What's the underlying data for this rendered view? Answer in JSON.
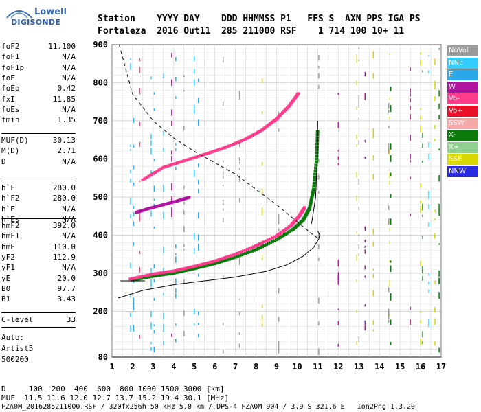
{
  "logo": {
    "line1": "Lowell",
    "line2": "DIGISONDE"
  },
  "header": {
    "row1": "Station    YYYY DAY    DDD HHMMSS P1   FFS S  AXN PPS IGA PS",
    "row2": "Fortaleza  2016 Out11  285 211000 RSF    1 714 100 10+ 11"
  },
  "params_group1": [
    {
      "label": "foF2",
      "value": "11.100"
    },
    {
      "label": "foF1",
      "value": "N/A"
    },
    {
      "label": "foF1p",
      "value": "N/A"
    },
    {
      "label": "foE",
      "value": "N/A"
    },
    {
      "label": "foEp",
      "value": "0.42"
    },
    {
      "label": "fxI",
      "value": "11.85"
    },
    {
      "label": "foEs",
      "value": "N/A"
    },
    {
      "label": "fmin",
      "value": "1.35"
    }
  ],
  "params_group2": [
    {
      "label": "MUF(D)",
      "value": "30.13"
    },
    {
      "label": "M(D)",
      "value": "2.71"
    },
    {
      "label": "D",
      "value": "N/A"
    }
  ],
  "params_group3": [
    {
      "label": "h`F",
      "value": "280.0"
    },
    {
      "label": "h`F2",
      "value": "280.0"
    },
    {
      "label": "h`E",
      "value": "N/A"
    },
    {
      "label": "h`Es",
      "value": "N/A"
    }
  ],
  "params_group4": [
    {
      "label": "hmF2",
      "value": "392.0"
    },
    {
      "label": "hmF1",
      "value": "N/A"
    },
    {
      "label": "hmE",
      "value": "110.0"
    },
    {
      "label": "yF2",
      "value": "112.9"
    },
    {
      "label": "yF1",
      "value": "N/A"
    },
    {
      "label": "yE",
      "value": "20.0"
    },
    {
      "label": "B0",
      "value": "97.7"
    },
    {
      "label": "B1",
      "value": "3.43"
    }
  ],
  "params_group5": [
    {
      "label": "C-level",
      "value": "33"
    }
  ],
  "auto": {
    "line1": "Auto:",
    "line2": "Artist5",
    "line3": "500200"
  },
  "legend": [
    {
      "label": "NoVal",
      "color": "#9a9a9a"
    },
    {
      "label": "NNE",
      "color": "#33ccff"
    },
    {
      "label": "E",
      "color": "#2aa8e8"
    },
    {
      "label": "W",
      "color": "#b0149e"
    },
    {
      "label": "Vo-",
      "color": "#ff3c8c"
    },
    {
      "label": "Vo+",
      "color": "#e8102a"
    },
    {
      "label": "SSW",
      "color": "#f5a8a8"
    },
    {
      "label": "X-",
      "color": "#0a7a0a"
    },
    {
      "label": "X+",
      "color": "#8fd08f"
    },
    {
      "label": "SSE",
      "color": "#d8d800"
    },
    {
      "label": "NNW",
      "color": "#2a2ae0"
    }
  ],
  "footer": {
    "line1": "D     100  200  400  600  800 1000 1500 3000 [km]",
    "line2": "MUF  11.5 11.6 12.0 12.7 13.7 15.2 19.4 30.1 [MHz]",
    "line3": "FZA0M_2016285211000.RSF / 320fx256h 50 kHz 5.0 km / DPS-4 FZA0M 904 / 3.9 S 321.6 E   Ion2Png 1.3.20"
  },
  "chart_data": {
    "type": "scatter",
    "title": "",
    "xlabel": "",
    "ylabel": "",
    "xlim": [
      1,
      17
    ],
    "ylim": [
      80,
      900
    ],
    "x_ticks": [
      1,
      2,
      3,
      4,
      5,
      6,
      7,
      8,
      9,
      10,
      11,
      12,
      13,
      14,
      15,
      16,
      17
    ],
    "y_ticks": [
      80,
      200,
      300,
      400,
      500,
      600,
      700,
      800,
      900
    ],
    "grid": true,
    "series": [
      {
        "name": "X-",
        "color": "#0a7a0a",
        "x": [
          2.0,
          3.0,
          4.0,
          5.0,
          6.0,
          7.0,
          8.0,
          9.0,
          9.8,
          10.3,
          10.6,
          10.8,
          10.95,
          11.0
        ],
        "y": [
          282,
          292,
          300,
          312,
          325,
          342,
          362,
          388,
          415,
          440,
          470,
          520,
          600,
          680
        ]
      },
      {
        "name": "Vo-",
        "color": "#ff3c8c",
        "x": [
          1.9,
          3.0,
          4.0,
          5.0,
          6.0,
          7.0,
          8.0,
          9.0,
          9.7,
          10.1,
          10.4
        ],
        "y": [
          285,
          298,
          306,
          318,
          332,
          350,
          372,
          398,
          425,
          450,
          475
        ]
      },
      {
        "name": "Vo-",
        "color": "#ff3c8c",
        "x": [
          2.5,
          3.5,
          4.5,
          5.5,
          6.5,
          7.5,
          8.3,
          9.0,
          9.6,
          10.1
        ],
        "y": [
          545,
          578,
          595,
          612,
          630,
          652,
          676,
          705,
          738,
          775
        ]
      },
      {
        "name": "W",
        "color": "#b0149e",
        "x": [
          2.2,
          2.8,
          3.5,
          4.2,
          4.8
        ],
        "y": [
          460,
          470,
          480,
          490,
          500
        ]
      }
    ],
    "profile_line": {
      "x": [
        1.3,
        2.5,
        4.0,
        5.5,
        7.0,
        8.5,
        9.5,
        10.3,
        10.8,
        11.05,
        11.1,
        11.0
      ],
      "y": [
        235,
        255,
        270,
        280,
        290,
        305,
        322,
        345,
        368,
        390,
        400,
        412
      ]
    },
    "dashed_curve": {
      "x": [
        1.35,
        2.0,
        3.0,
        4.0,
        5.0,
        6.0,
        7.0,
        8.0,
        9.0,
        10.0,
        10.8,
        11.0
      ],
      "y": [
        900,
        770,
        700,
        655,
        620,
        590,
        560,
        520,
        480,
        435,
        400,
        392
      ]
    },
    "h_true_line": {
      "x": [
        11.0,
        10.98,
        10.9,
        10.7
      ],
      "y": [
        700,
        600,
        500,
        430
      ]
    }
  }
}
